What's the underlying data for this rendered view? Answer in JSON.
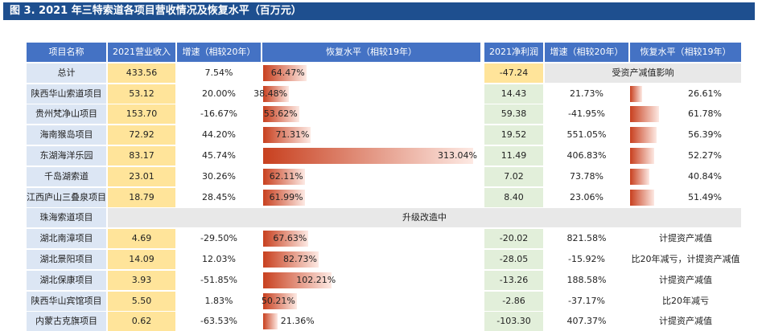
{
  "title": "图 3. 2021 年三特索道各项目营收情况及恢复水平（百万元）",
  "headers_left": [
    "项目名称",
    "2021营业收入",
    "增速（相较20年）",
    "恢复水平（相较19年）"
  ],
  "headers_right": [
    "2021净利润",
    "增速（相较20年）",
    "恢复水平（相较19年）"
  ],
  "rows": [
    {
      "name": "总计",
      "revenue": "433.56",
      "growth": "7.54%",
      "recovery": "64.47%",
      "recovery_value": 64.47,
      "profit": "-47.24",
      "note": "受资产减值影响"
    },
    {
      "name": "陕西华山索道项目",
      "revenue": "53.12",
      "growth": "20.00%",
      "recovery": "38.48%",
      "recovery_value": 38.48,
      "profit": "14.43",
      "p_growth": "21.73%",
      "p_recovery": "26.61%",
      "p_recovery_value": 26.61
    },
    {
      "name": "贵州梵净山项目",
      "revenue": "153.70",
      "growth": "-16.67%",
      "recovery": "53.62%",
      "recovery_value": 53.62,
      "profit": "59.38",
      "p_growth": "-41.95%",
      "p_recovery": "61.78%",
      "p_recovery_value": 61.78
    },
    {
      "name": "海南猴岛项目",
      "revenue": "72.92",
      "growth": "44.20%",
      "recovery": "71.31%",
      "recovery_value": 71.31,
      "profit": "19.52",
      "p_growth": "551.05%",
      "p_recovery": "56.39%",
      "p_recovery_value": 56.39
    },
    {
      "name": "东湖海洋乐园",
      "revenue": "83.17",
      "growth": "45.74%",
      "recovery": "313.04%",
      "recovery_value": 313.04,
      "profit": "11.49",
      "p_growth": "406.83%",
      "p_recovery": "52.27%",
      "p_recovery_value": 52.27
    },
    {
      "name": "千岛湖索道",
      "revenue": "23.01",
      "growth": "30.26%",
      "recovery": "62.11%",
      "recovery_value": 62.11,
      "profit": "7.02",
      "p_growth": "73.78%",
      "p_recovery": "40.84%",
      "p_recovery_value": 40.84
    },
    {
      "name": "江西庐山三叠泉项目",
      "revenue": "18.79",
      "growth": "28.45%",
      "recovery": "61.99%",
      "recovery_value": 61.99,
      "profit": "8.40",
      "p_growth": "23.06%",
      "p_recovery": "51.49%",
      "p_recovery_value": 51.49
    },
    {
      "name": "珠海索道项目",
      "merged": "升级改造中"
    },
    {
      "name": "湖北南漳项目",
      "revenue": "4.69",
      "growth": "-29.50%",
      "recovery": "67.63%",
      "recovery_value": 67.63,
      "profit": "-20.02",
      "p_growth": "821.58%",
      "p_text": "计提资产减值"
    },
    {
      "name": "湖北景阳项目",
      "revenue": "14.09",
      "growth": "12.03%",
      "recovery": "82.73%",
      "recovery_value": 82.73,
      "profit": "-28.05",
      "p_growth": "-15.92%",
      "p_text": "比20年减亏，计提资产减值"
    },
    {
      "name": "湖北保康项目",
      "revenue": "3.93",
      "growth": "-51.85%",
      "recovery": "102.21%",
      "recovery_value": 102.21,
      "profit": "-13.26",
      "p_growth": "188.58%",
      "p_text": "计提资产减值"
    },
    {
      "name": "陕西华山宾馆项目",
      "revenue": "5.50",
      "growth": "1.83%",
      "recovery": "50.21%",
      "recovery_value": 50.21,
      "profit": "-2.86",
      "p_growth": "-37.17%",
      "p_text": "比20年减亏"
    },
    {
      "name": "内蒙古克旗项目",
      "revenue": "0.62",
      "growth": "-63.53%",
      "recovery": "21.36%",
      "recovery_value": 21.36,
      "profit": "-103.30",
      "p_growth": "407.37%",
      "p_text": "计提资产减值"
    }
  ]
}
